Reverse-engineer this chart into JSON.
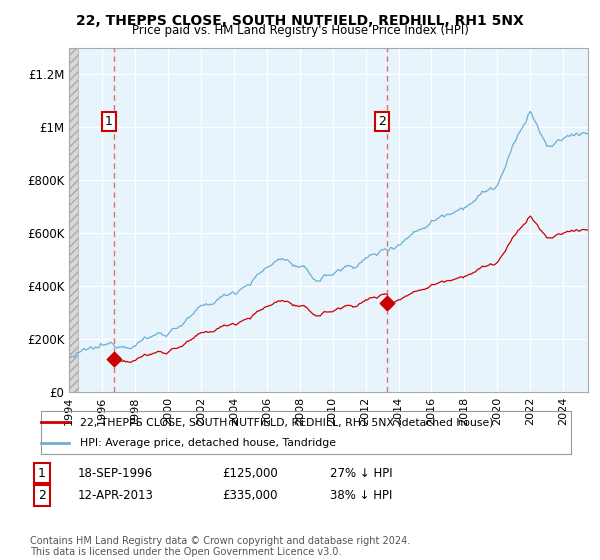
{
  "title1": "22, THEPPS CLOSE, SOUTH NUTFIELD, REDHILL, RH1 5NX",
  "title2": "Price paid vs. HM Land Registry's House Price Index (HPI)",
  "ylabel_ticks": [
    "£0",
    "£200K",
    "£400K",
    "£600K",
    "£800K",
    "£1M",
    "£1.2M"
  ],
  "ytick_vals": [
    0,
    200000,
    400000,
    600000,
    800000,
    1000000,
    1200000
  ],
  "ylim": [
    0,
    1300000
  ],
  "xlim_start": 1994.0,
  "xlim_end": 2025.5,
  "sale1_year": 1996,
  "sale1_month": 9,
  "sale1_price": 125000,
  "sale2_year": 2013,
  "sale2_month": 4,
  "sale2_price": 335000,
  "hpi_color": "#6baed6",
  "hpi_fill_color": "#ddeeff",
  "price_color": "#cc0000",
  "dashed_vline_color": "#e07070",
  "hatch_color": "#c8c8c8",
  "legend_line1": "22, THEPPS CLOSE, SOUTH NUTFIELD, REDHILL, RH1 5NX (detached house)",
  "legend_line2": "HPI: Average price, detached house, Tandridge",
  "annotation1_date": "18-SEP-1996",
  "annotation1_price": "£125,000",
  "annotation1_hpi": "27% ↓ HPI",
  "annotation2_date": "12-APR-2013",
  "annotation2_price": "£335,000",
  "annotation2_hpi": "38% ↓ HPI",
  "footer": "Contains HM Land Registry data © Crown copyright and database right 2024.\nThis data is licensed under the Open Government Licence v3.0.",
  "xticks": [
    1994,
    1996,
    1998,
    2000,
    2002,
    2004,
    2006,
    2008,
    2010,
    2012,
    2014,
    2016,
    2018,
    2020,
    2022,
    2024
  ]
}
